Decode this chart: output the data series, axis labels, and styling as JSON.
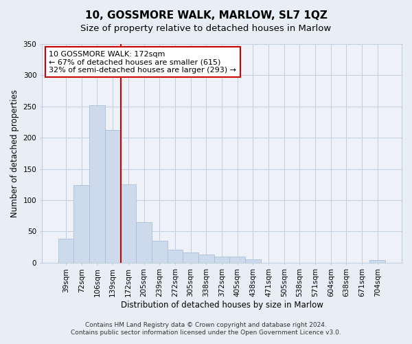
{
  "title": "10, GOSSMORE WALK, MARLOW, SL7 1QZ",
  "subtitle": "Size of property relative to detached houses in Marlow",
  "xlabel": "Distribution of detached houses by size in Marlow",
  "ylabel": "Number of detached properties",
  "bar_labels": [
    "39sqm",
    "72sqm",
    "106sqm",
    "139sqm",
    "172sqm",
    "205sqm",
    "239sqm",
    "272sqm",
    "305sqm",
    "338sqm",
    "372sqm",
    "405sqm",
    "438sqm",
    "471sqm",
    "505sqm",
    "538sqm",
    "571sqm",
    "604sqm",
    "638sqm",
    "671sqm",
    "704sqm"
  ],
  "bar_values": [
    38,
    124,
    252,
    212,
    125,
    65,
    35,
    21,
    16,
    13,
    10,
    10,
    5,
    0,
    0,
    0,
    0,
    0,
    0,
    0,
    4
  ],
  "bar_color": "#ccdaec",
  "bar_edge_color": "#a8bedc",
  "vline_color": "#cc0000",
  "annotation_text": "10 GOSSMORE WALK: 172sqm\n← 67% of detached houses are smaller (615)\n32% of semi-detached houses are larger (293) →",
  "annotation_box_facecolor": "white",
  "annotation_box_edgecolor": "#cc0000",
  "ylim": [
    0,
    350
  ],
  "yticks": [
    0,
    50,
    100,
    150,
    200,
    250,
    300,
    350
  ],
  "footnote1": "Contains HM Land Registry data © Crown copyright and database right 2024.",
  "footnote2": "Contains public sector information licensed under the Open Government Licence v3.0.",
  "fig_facecolor": "#e8eef5",
  "axes_facecolor": "#eef2f8",
  "grid_color": "#c0cfe0",
  "title_fontsize": 11,
  "subtitle_fontsize": 9.5,
  "axis_label_fontsize": 8.5,
  "tick_fontsize": 7.5,
  "annot_fontsize": 8,
  "footnote_fontsize": 6.5
}
